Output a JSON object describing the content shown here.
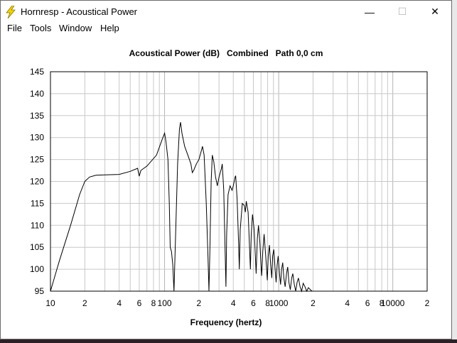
{
  "window": {
    "title": "Hornresp - Acoustical Power",
    "minimize_glyph": "—",
    "maximize_glyph": "☐",
    "close_glyph": "✕"
  },
  "menu": {
    "items": [
      "File",
      "Tools",
      "Window",
      "Help"
    ]
  },
  "chart_data": {
    "type": "line",
    "title": "Acoustical Power (dB)   Combined   Path 0,0 cm",
    "xlabel": "Frequency (hertz)",
    "ylabel": "",
    "x_scale": "log",
    "xlim": [
      10,
      20000
    ],
    "ylim": [
      95,
      145
    ],
    "y_ticks": [
      95,
      100,
      105,
      110,
      115,
      120,
      125,
      130,
      135,
      140,
      145
    ],
    "x_tick_labels": [
      {
        "value": 10,
        "label": "10"
      },
      {
        "value": 20,
        "label": "2"
      },
      {
        "value": 40,
        "label": "4"
      },
      {
        "value": 60,
        "label": "6"
      },
      {
        "value": 80,
        "label": "8"
      },
      {
        "value": 100,
        "label": "100"
      },
      {
        "value": 200,
        "label": "2"
      },
      {
        "value": 400,
        "label": "4"
      },
      {
        "value": 600,
        "label": "6"
      },
      {
        "value": 800,
        "label": "8"
      },
      {
        "value": 1000,
        "label": "1000"
      },
      {
        "value": 2000,
        "label": "2"
      },
      {
        "value": 4000,
        "label": "4"
      },
      {
        "value": 6000,
        "label": "6"
      },
      {
        "value": 8000,
        "label": "8"
      },
      {
        "value": 10000,
        "label": "10000"
      },
      {
        "value": 20000,
        "label": "2"
      }
    ],
    "grid": true,
    "line_color": "#000000",
    "grid_color": "#c8c8c8",
    "series": [
      {
        "values": [
          [
            10,
            95
          ],
          [
            12,
            102
          ],
          [
            15,
            110
          ],
          [
            18,
            117
          ],
          [
            20,
            120
          ],
          [
            22,
            121
          ],
          [
            25,
            121.4
          ],
          [
            30,
            121.5
          ],
          [
            40,
            121.6
          ],
          [
            50,
            122.3
          ],
          [
            58,
            123
          ],
          [
            60,
            121.2
          ],
          [
            62,
            122.5
          ],
          [
            70,
            123.5
          ],
          [
            85,
            126
          ],
          [
            95,
            129.5
          ],
          [
            100,
            131
          ],
          [
            103,
            129
          ],
          [
            107,
            125
          ],
          [
            110,
            115
          ],
          [
            112,
            105
          ],
          [
            115,
            104
          ],
          [
            118,
            101
          ],
          [
            121,
            95
          ],
          [
            125,
            108
          ],
          [
            130,
            124
          ],
          [
            135,
            132
          ],
          [
            138,
            133.5
          ],
          [
            142,
            131
          ],
          [
            150,
            128
          ],
          [
            160,
            126
          ],
          [
            170,
            124
          ],
          [
            175,
            122
          ],
          [
            180,
            122.5
          ],
          [
            190,
            124
          ],
          [
            200,
            125
          ],
          [
            210,
            127
          ],
          [
            215,
            128
          ],
          [
            222,
            126
          ],
          [
            232,
            115
          ],
          [
            240,
            103
          ],
          [
            245,
            95
          ],
          [
            250,
            105
          ],
          [
            256,
            120
          ],
          [
            262,
            126
          ],
          [
            270,
            124.5
          ],
          [
            280,
            121
          ],
          [
            290,
            119
          ],
          [
            300,
            121
          ],
          [
            315,
            123
          ],
          [
            320,
            124
          ],
          [
            330,
            118
          ],
          [
            340,
            103
          ],
          [
            345,
            96
          ],
          [
            350,
            108
          ],
          [
            360,
            117
          ],
          [
            375,
            119
          ],
          [
            390,
            118
          ],
          [
            400,
            119
          ],
          [
            415,
            121
          ],
          [
            420,
            121.3
          ],
          [
            432,
            116
          ],
          [
            445,
            106
          ],
          [
            452,
            100
          ],
          [
            460,
            109
          ],
          [
            480,
            115
          ],
          [
            500,
            114.5
          ],
          [
            510,
            113
          ],
          [
            520,
            115.5
          ],
          [
            540,
            113
          ],
          [
            555,
            105
          ],
          [
            565,
            100
          ],
          [
            575,
            108
          ],
          [
            590,
            112.5
          ],
          [
            610,
            109
          ],
          [
            625,
            103
          ],
          [
            635,
            99
          ],
          [
            650,
            107
          ],
          [
            665,
            110
          ],
          [
            685,
            106
          ],
          [
            700,
            101
          ],
          [
            710,
            98.5
          ],
          [
            725,
            104
          ],
          [
            745,
            108
          ],
          [
            765,
            104
          ],
          [
            785,
            100
          ],
          [
            795,
            97.5
          ],
          [
            810,
            103
          ],
          [
            830,
            105.5
          ],
          [
            850,
            101
          ],
          [
            870,
            98
          ],
          [
            885,
            103
          ],
          [
            905,
            104.5
          ],
          [
            930,
            100
          ],
          [
            950,
            97
          ],
          [
            970,
            101
          ],
          [
            990,
            103
          ],
          [
            1015,
            99
          ],
          [
            1040,
            96.5
          ],
          [
            1060,
            100
          ],
          [
            1085,
            101.5
          ],
          [
            1110,
            98
          ],
          [
            1140,
            96
          ],
          [
            1170,
            99
          ],
          [
            1200,
            100.5
          ],
          [
            1230,
            97
          ],
          [
            1265,
            95.3
          ],
          [
            1300,
            98
          ],
          [
            1330,
            99
          ],
          [
            1370,
            96.5
          ],
          [
            1410,
            95
          ],
          [
            1450,
            97
          ],
          [
            1490,
            98
          ],
          [
            1540,
            96
          ],
          [
            1590,
            95
          ],
          [
            1640,
            96.8
          ],
          [
            1700,
            96
          ],
          [
            1760,
            95
          ],
          [
            1820,
            95.8
          ],
          [
            1900,
            95.3
          ],
          [
            1960,
            95
          ]
        ]
      }
    ]
  }
}
